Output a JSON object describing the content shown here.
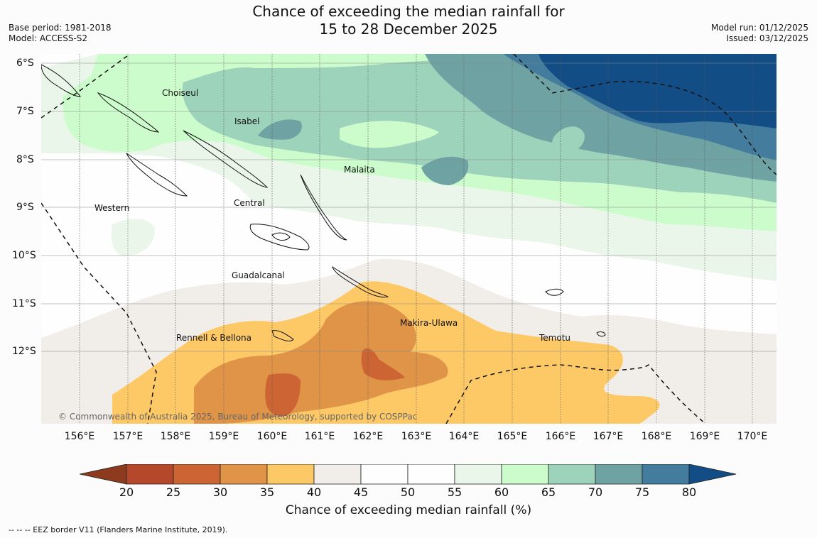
{
  "title": {
    "line1": "Chance of exceeding the median rainfall for",
    "line2": "15 to 28 December 2025"
  },
  "meta_left": {
    "base_period": "Base period: 1981-2018",
    "model": "Model: ACCESS-S2"
  },
  "meta_right": {
    "model_run": "Model run: 01/12/2025",
    "issued": "Issued: 03/12/2025"
  },
  "axes": {
    "lon_labels": [
      "156°E",
      "157°E",
      "158°E",
      "159°E",
      "160°E",
      "161°E",
      "162°E",
      "163°E",
      "164°E",
      "165°E",
      "166°E",
      "167°E",
      "168°E",
      "169°E",
      "170°E"
    ],
    "lat_labels": [
      "6°S",
      "7°S",
      "8°S",
      "9°S",
      "10°S",
      "11°S",
      "12°S"
    ]
  },
  "places": {
    "choiseul": "Choiseul",
    "isabel": "Isabel",
    "malaita": "Malaita",
    "western": "Western",
    "central": "Central",
    "guadalcanal": "Guadalcanal",
    "makira": "Makira-Ulawa",
    "rennell": "Rennell & Bellona",
    "temotu": "Temotu"
  },
  "copyright": "© Commonwealth of Australia 2025, Bureau of Meteorology, supported by COSPPac",
  "colorbar": {
    "ticks": [
      "20",
      "25",
      "30",
      "35",
      "40",
      "45",
      "50",
      "55",
      "60",
      "65",
      "70",
      "75",
      "80"
    ],
    "colors": [
      "#8e3a1e",
      "#b5482a",
      "#cc6533",
      "#e09447",
      "#fdc966",
      "#f1ede9",
      "#fefefe",
      "#fefefe",
      "#eaf6ea",
      "#ccfccc",
      "#9dd2bb",
      "#6fa3a3",
      "#437c9c",
      "#134d85"
    ],
    "label": "Chance of exceeding median rainfall (%)"
  },
  "footnote": "--  --  -- EEZ border V11 (Flanders Marine Institute, 2019)."
}
